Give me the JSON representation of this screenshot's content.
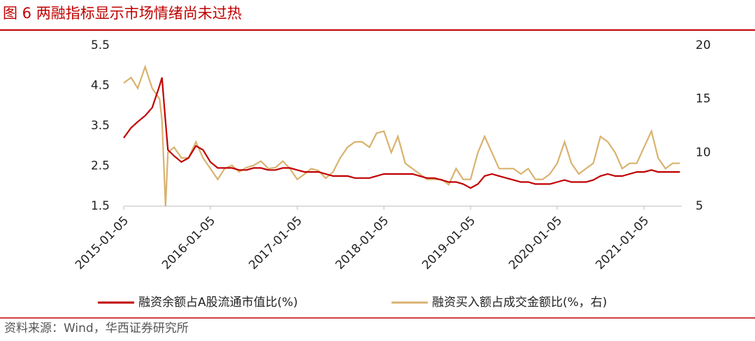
{
  "chart_data": {
    "type": "line",
    "title": "图 6 两融指标显示市场情绪尚未过热",
    "source": "资料来源：Wind，华西证券研究所",
    "x": [
      "2015-01-05",
      "2015-02-05",
      "2015-03-05",
      "2015-04-05",
      "2015-05-05",
      "2015-06-05",
      "2015-06-15",
      "2015-06-30",
      "2015-07-10",
      "2015-08-05",
      "2015-09-05",
      "2015-10-05",
      "2015-11-05",
      "2015-12-05",
      "2016-01-05",
      "2016-02-05",
      "2016-03-05",
      "2016-04-05",
      "2016-05-05",
      "2016-06-05",
      "2016-07-05",
      "2016-08-05",
      "2016-09-05",
      "2016-10-05",
      "2016-11-05",
      "2016-12-05",
      "2017-01-05",
      "2017-02-05",
      "2017-03-05",
      "2017-04-05",
      "2017-05-05",
      "2017-06-05",
      "2017-07-05",
      "2017-08-05",
      "2017-09-05",
      "2017-10-05",
      "2017-11-05",
      "2017-12-05",
      "2018-01-05",
      "2018-02-05",
      "2018-03-05",
      "2018-04-05",
      "2018-05-05",
      "2018-06-05",
      "2018-07-05",
      "2018-08-05",
      "2018-09-05",
      "2018-10-05",
      "2018-11-05",
      "2018-12-05",
      "2019-01-05",
      "2019-02-05",
      "2019-03-05",
      "2019-04-05",
      "2019-05-05",
      "2019-06-05",
      "2019-07-05",
      "2019-08-05",
      "2019-09-05",
      "2019-10-05",
      "2019-11-05",
      "2019-12-05",
      "2020-01-05",
      "2020-02-05",
      "2020-03-05",
      "2020-04-05",
      "2020-05-05",
      "2020-06-05",
      "2020-07-05",
      "2020-08-05",
      "2020-09-05",
      "2020-10-05",
      "2020-11-05",
      "2020-12-05",
      "2021-01-05",
      "2021-02-05",
      "2021-03-05",
      "2021-04-05",
      "2021-05-05",
      "2021-06-05"
    ],
    "series": [
      {
        "name": "融资余额占A股流通市值比(%)",
        "color": "#c00000",
        "axis": "y",
        "values": [
          3.2,
          3.45,
          3.6,
          3.75,
          3.95,
          4.5,
          4.7,
          3.6,
          2.9,
          2.75,
          2.6,
          2.7,
          3.0,
          2.9,
          2.6,
          2.45,
          2.45,
          2.45,
          2.4,
          2.4,
          2.45,
          2.45,
          2.4,
          2.4,
          2.45,
          2.45,
          2.4,
          2.35,
          2.35,
          2.35,
          2.3,
          2.25,
          2.25,
          2.25,
          2.2,
          2.2,
          2.2,
          2.25,
          2.3,
          2.3,
          2.3,
          2.3,
          2.3,
          2.25,
          2.2,
          2.2,
          2.15,
          2.1,
          2.1,
          2.05,
          1.95,
          2.05,
          2.25,
          2.3,
          2.25,
          2.2,
          2.15,
          2.1,
          2.1,
          2.05,
          2.05,
          2.05,
          2.1,
          2.15,
          2.1,
          2.1,
          2.1,
          2.15,
          2.25,
          2.3,
          2.25,
          2.25,
          2.3,
          2.35,
          2.35,
          2.4,
          2.35,
          2.35,
          2.35,
          2.35
        ]
      },
      {
        "name": "融资买入额占成交金额比(%，右)",
        "color": "#d9b26e",
        "axis": "y2",
        "values": [
          16.5,
          17,
          16,
          18,
          16,
          15,
          13,
          5,
          10,
          10.5,
          9.5,
          9.5,
          11,
          9.5,
          8.5,
          7.5,
          8.5,
          8.8,
          8.2,
          8.6,
          8.8,
          9.2,
          8.5,
          8.6,
          9.2,
          8.5,
          7.5,
          8,
          8.5,
          8.3,
          7.6,
          8.2,
          9.5,
          10.5,
          11,
          11,
          10.5,
          11.8,
          12,
          10,
          11.5,
          9,
          8.5,
          8,
          7.5,
          7.5,
          7.5,
          7,
          8.5,
          7.5,
          7.5,
          10,
          11.5,
          10,
          8.5,
          8.5,
          8.5,
          8,
          8.5,
          7.5,
          7.5,
          8,
          9,
          11,
          9,
          8,
          8.5,
          9,
          11.5,
          11,
          10,
          8.5,
          9,
          9,
          10.5,
          12,
          9.5,
          8.5,
          9,
          9
        ]
      }
    ],
    "xlim": [
      "2015-01-05",
      "2021-06-12"
    ],
    "xticks": [
      "2015-01-05",
      "2016-01-05",
      "2017-01-05",
      "2018-01-05",
      "2019-01-05",
      "2020-01-05",
      "2021-01-05"
    ],
    "ylim": [
      1.5,
      5.5
    ],
    "yticks": [
      1.5,
      2.5,
      3.5,
      4.5,
      5.5
    ],
    "y2lim": [
      5,
      20
    ],
    "y2ticks": [
      5,
      10,
      15,
      20
    ],
    "grid": false,
    "legend": "bottom"
  }
}
